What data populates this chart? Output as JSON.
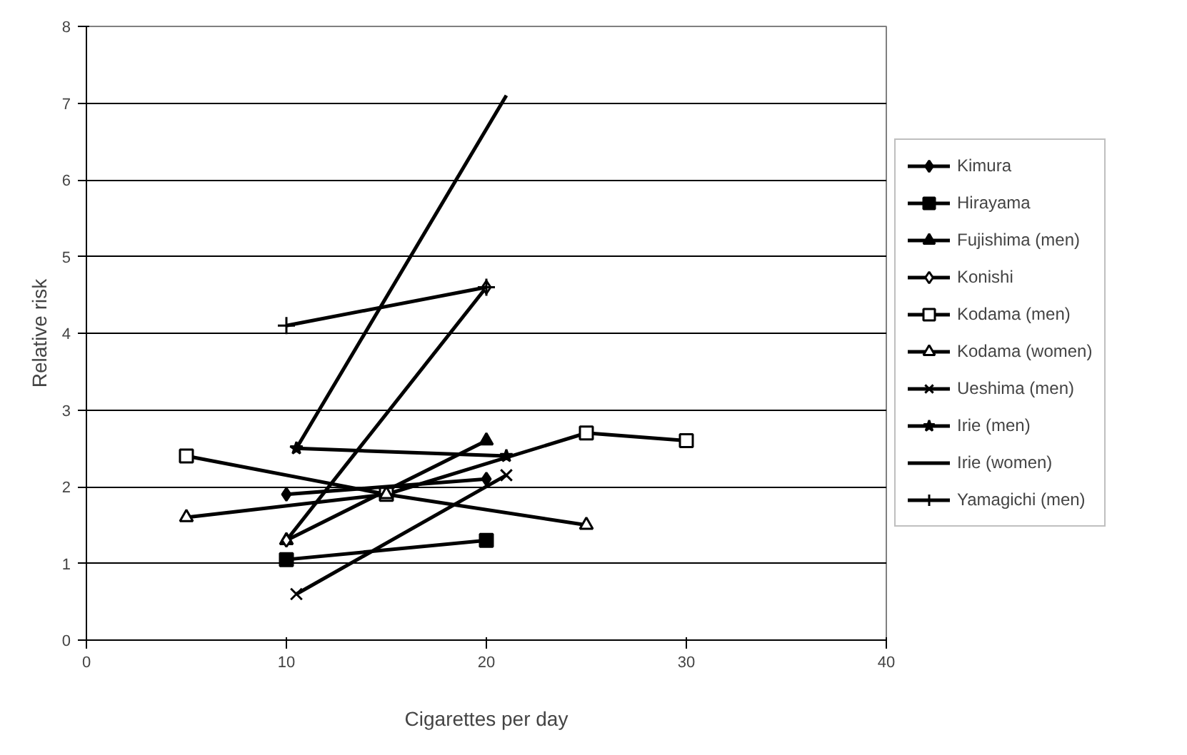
{
  "chart_data": {
    "type": "line",
    "xlabel": "Cigarettes per day",
    "ylabel": "Relative risk",
    "xlim": [
      0,
      40
    ],
    "xticks": [
      0,
      10,
      20,
      30,
      40
    ],
    "ylim": [
      0,
      8
    ],
    "yticks": [
      0,
      1,
      2,
      3,
      4,
      5,
      6,
      7,
      8
    ],
    "grid": "y",
    "legend": "right",
    "line_style": "solid",
    "series": [
      {
        "name": "Kimura",
        "color": "#000000",
        "marker": "diamond",
        "x": [
          10,
          20
        ],
        "values": [
          1.9,
          2.1
        ]
      },
      {
        "name": "Hirayama",
        "color": "#000000",
        "marker": "square",
        "x": [
          10,
          20
        ],
        "values": [
          1.05,
          1.3
        ]
      },
      {
        "name": "Fujishima (men)",
        "color": "#000000",
        "marker": "triangle",
        "x": [
          10,
          20
        ],
        "values": [
          1.3,
          2.6
        ]
      },
      {
        "name": "Konishi",
        "color": "#000000",
        "marker": "diamond_open",
        "x": [
          10,
          20
        ],
        "values": [
          1.3,
          4.6
        ]
      },
      {
        "name": "Kodama (men)",
        "color": "#000000",
        "marker": "square_open",
        "x": [
          5,
          15,
          25,
          30
        ],
        "values": [
          2.4,
          1.9,
          2.7,
          2.6
        ]
      },
      {
        "name": "Kodama (women)",
        "color": "#000000",
        "marker": "triangle_open",
        "x": [
          5,
          15,
          25
        ],
        "values": [
          1.6,
          1.9,
          1.5
        ]
      },
      {
        "name": "Ueshima (men)",
        "color": "#000000",
        "marker": "x",
        "x": [
          10.5,
          21
        ],
        "values": [
          0.6,
          2.15
        ]
      },
      {
        "name": "Irie (men)",
        "color": "#000000",
        "marker": "star",
        "x": [
          10.5,
          21
        ],
        "values": [
          2.5,
          2.4
        ]
      },
      {
        "name": "Irie (women)",
        "color": "#000000",
        "marker": "none",
        "x": [
          10.5,
          21
        ],
        "values": [
          2.5,
          7.1
        ]
      },
      {
        "name": "Yamagichi (men)",
        "color": "#000000",
        "marker": "cross",
        "x": [
          10,
          20
        ],
        "values": [
          4.1,
          4.6
        ]
      }
    ]
  }
}
